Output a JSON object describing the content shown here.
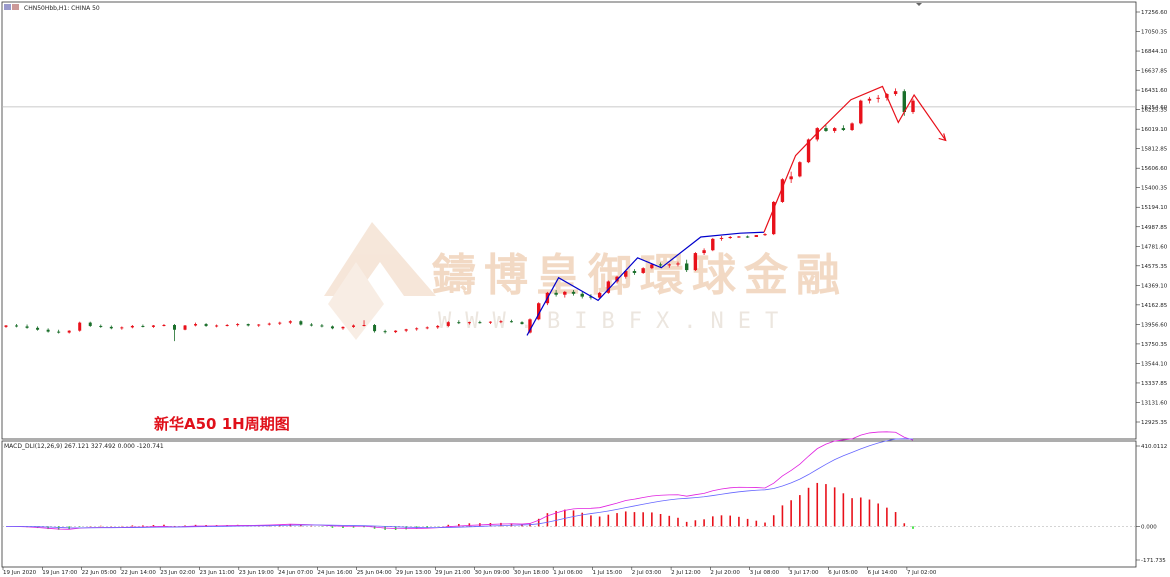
{
  "header": {
    "symbol_title": "CHN50Hbb,H1:  CHINA 50",
    "macd_title": "MACD_DLI(12,26,9) 267.121 327.492 0.000 -120.741"
  },
  "annotation": {
    "caption": "新华A50 1H周期图"
  },
  "watermark": {
    "cn": "鑄博皇御環球金融",
    "en": "WWW.BIBFX.NET"
  },
  "colors": {
    "bull": "#e8101a",
    "bear": "#1a6e2a",
    "macd_pos": "#e8101a",
    "macd_neg": "#22dd22",
    "blue_zigzag": "#0000cc",
    "red_zigzag": "#e8101a",
    "macd_line": "#e020e0",
    "signal_line": "#6666ff"
  },
  "chart_data": [
    {
      "type": "line",
      "title": "",
      "series_kind": "candlestick",
      "price_axis_ticks": [
        "17256.60",
        "17050.35",
        "16844.10",
        "16637.85",
        "16431.60",
        "16225.35",
        "16019.10",
        "15812.85",
        "15606.60",
        "15400.35",
        "15194.10",
        "14987.85",
        "14781.60",
        "14575.35",
        "14369.10",
        "14162.85",
        "13956.60",
        "13750.35",
        "13544.10",
        "13337.85",
        "13131.60",
        "12925.35"
      ],
      "current_price_label": "16254.60",
      "ylim": [
        12860,
        17300
      ],
      "time_axis_labels": [
        "19 Jun 2020",
        "19 Jun 17:00",
        "22 Jun 05:00",
        "22 Jun 14:00",
        "23 Jun 02:00",
        "23 Jun 11:00",
        "23 Jun 19:00",
        "24 Jun 07:00",
        "24 Jun 16:00",
        "25 Jun 04:00",
        "29 Jun 13:00",
        "29 Jun 21:00",
        "30 Jun 09:00",
        "30 Jun 18:00",
        "1 Jul 06:00",
        "1 Jul 15:00",
        "2 Jul 03:00",
        "2 Jul 12:00",
        "2 Jul 20:00",
        "3 Jul 08:00",
        "3 Jul 17:00",
        "6 Jul 05:00",
        "6 Jul 14:00",
        "7 Jul 02:00"
      ],
      "blue_zigzag": [
        {
          "bar": 0,
          "price": 13840
        },
        {
          "bar": 4,
          "price": 14450
        },
        {
          "bar": 9,
          "price": 14210
        },
        {
          "bar": 14,
          "price": 14660
        },
        {
          "bar": 17,
          "price": 14555
        },
        {
          "bar": 22,
          "price": 14880
        },
        {
          "bar": 27,
          "price": 14920
        },
        {
          "bar": 30,
          "price": 14930
        }
      ],
      "red_zigzag": [
        {
          "bar": 30,
          "price": 14930
        },
        {
          "bar": 34,
          "price": 15740
        },
        {
          "bar": 37,
          "price": 16000
        },
        {
          "bar": 41,
          "price": 16330
        },
        {
          "bar": 45,
          "price": 16470
        },
        {
          "bar": 47,
          "price": 16090
        },
        {
          "bar": 49,
          "price": 16380
        },
        {
          "bar": 53,
          "price": 15900
        }
      ],
      "candles": [
        [
          13930,
          13950,
          13920,
          13945
        ],
        [
          13945,
          13960,
          13925,
          13935
        ],
        [
          13935,
          13955,
          13910,
          13920
        ],
        [
          13920,
          13935,
          13890,
          13900
        ],
        [
          13900,
          13915,
          13870,
          13880
        ],
        [
          13880,
          13900,
          13860,
          13870
        ],
        [
          13870,
          13895,
          13860,
          13890
        ],
        [
          13890,
          13985,
          13880,
          13975
        ],
        [
          13975,
          13985,
          13930,
          13940
        ],
        [
          13940,
          13955,
          13920,
          13930
        ],
        [
          13930,
          13945,
          13905,
          13915
        ],
        [
          13915,
          13935,
          13900,
          13925
        ],
        [
          13925,
          13950,
          13915,
          13940
        ],
        [
          13940,
          13955,
          13925,
          13930
        ],
        [
          13930,
          13950,
          13920,
          13945
        ],
        [
          13945,
          13960,
          13935,
          13950
        ],
        [
          13950,
          13960,
          13780,
          13900
        ],
        [
          13900,
          13950,
          13895,
          13945
        ],
        [
          13945,
          13975,
          13935,
          13960
        ],
        [
          13960,
          13970,
          13930,
          13940
        ],
        [
          13940,
          13955,
          13925,
          13945
        ],
        [
          13945,
          13960,
          13935,
          13950
        ],
        [
          13950,
          13970,
          13935,
          13960
        ],
        [
          13960,
          13965,
          13935,
          13945
        ],
        [
          13945,
          13960,
          13930,
          13955
        ],
        [
          13955,
          13975,
          13945,
          13965
        ],
        [
          13965,
          13985,
          13950,
          13975
        ],
        [
          13975,
          14000,
          13960,
          13990
        ],
        [
          13990,
          14000,
          13945,
          13955
        ],
        [
          13955,
          13970,
          13935,
          13945
        ],
        [
          13945,
          13960,
          13925,
          13935
        ],
        [
          13935,
          13945,
          13905,
          13915
        ],
        [
          13915,
          13935,
          13900,
          13930
        ],
        [
          13930,
          13955,
          13920,
          13945
        ],
        [
          13945,
          14000,
          13935,
          13950
        ],
        [
          13950,
          13960,
          13870,
          13885
        ],
        [
          13885,
          13900,
          13860,
          13875
        ],
        [
          13875,
          13895,
          13865,
          13890
        ],
        [
          13890,
          13910,
          13875,
          13905
        ],
        [
          13905,
          13925,
          13890,
          13915
        ],
        [
          13915,
          13935,
          13905,
          13925
        ],
        [
          13925,
          13950,
          13910,
          13940
        ],
        [
          13940,
          13990,
          13930,
          13980
        ],
        [
          13980,
          14000,
          13960,
          13970
        ],
        [
          13970,
          13985,
          13955,
          13980
        ],
        [
          13980,
          13995,
          13965,
          13975
        ],
        [
          13975,
          13990,
          13960,
          13985
        ],
        [
          13985,
          14000,
          13970,
          13990
        ],
        [
          13990,
          14005,
          13975,
          13980
        ],
        [
          13980,
          13990,
          13955,
          13960
        ]
      ],
      "rally_candles": [
        [
          13870,
          14020,
          13860,
          14010
        ],
        [
          14010,
          14190,
          14000,
          14180
        ],
        [
          14180,
          14300,
          14160,
          14290
        ],
        [
          14290,
          14320,
          14250,
          14270
        ],
        [
          14270,
          14310,
          14240,
          14300
        ],
        [
          14300,
          14320,
          14260,
          14280
        ],
        [
          14280,
          14300,
          14230,
          14250
        ],
        [
          14250,
          14275,
          14220,
          14240
        ],
        [
          14240,
          14300,
          14230,
          14290
        ],
        [
          14290,
          14420,
          14280,
          14410
        ],
        [
          14410,
          14470,
          14390,
          14460
        ],
        [
          14460,
          14530,
          14440,
          14520
        ],
        [
          14520,
          14540,
          14480,
          14500
        ],
        [
          14500,
          14560,
          14490,
          14550
        ],
        [
          14550,
          14600,
          14540,
          14590
        ],
        [
          14590,
          14610,
          14560,
          14580
        ],
        [
          14580,
          14600,
          14555,
          14590
        ],
        [
          14590,
          14620,
          14570,
          14600
        ],
        [
          14600,
          14640,
          14510,
          14530
        ],
        [
          14530,
          14720,
          14520,
          14710
        ],
        [
          14710,
          14760,
          14690,
          14740
        ],
        [
          14740,
          14870,
          14730,
          14860
        ],
        [
          14860,
          14890,
          14840,
          14870
        ],
        [
          14870,
          14890,
          14860,
          14880
        ],
        [
          14880,
          14890,
          14870,
          14885
        ],
        [
          14885,
          14895,
          14870,
          14880
        ],
        [
          14880,
          14900,
          14880,
          14900
        ],
        [
          14900,
          14920,
          14890,
          14910
        ],
        [
          14910,
          15260,
          14900,
          15250
        ],
        [
          15250,
          15500,
          15240,
          15490
        ],
        [
          15490,
          15570,
          15450,
          15520
        ],
        [
          15520,
          15680,
          15510,
          15670
        ],
        [
          15670,
          15920,
          15660,
          15910
        ],
        [
          15910,
          16040,
          15890,
          16030
        ],
        [
          16030,
          16060,
          15990,
          16000
        ],
        [
          16000,
          16040,
          15980,
          16030
        ],
        [
          16030,
          16060,
          16000,
          16010
        ],
        [
          16010,
          16090,
          16000,
          16080
        ],
        [
          16080,
          16330,
          16070,
          16320
        ],
        [
          16320,
          16360,
          16290,
          16340
        ],
        [
          16340,
          16380,
          16300,
          16350
        ],
        [
          16350,
          16400,
          16320,
          16390
        ],
        [
          16390,
          16450,
          16370,
          16420
        ],
        [
          16420,
          16440,
          16160,
          16200
        ],
        [
          16200,
          16340,
          16180,
          16320
        ]
      ]
    },
    {
      "type": "bar",
      "title": "",
      "indicator": "MACD_DLI(12,26,9)",
      "y_ticks": [
        "410.0112",
        "0.000",
        "-171.735"
      ],
      "ylim": [
        -171.735,
        410.0112
      ]
    }
  ]
}
